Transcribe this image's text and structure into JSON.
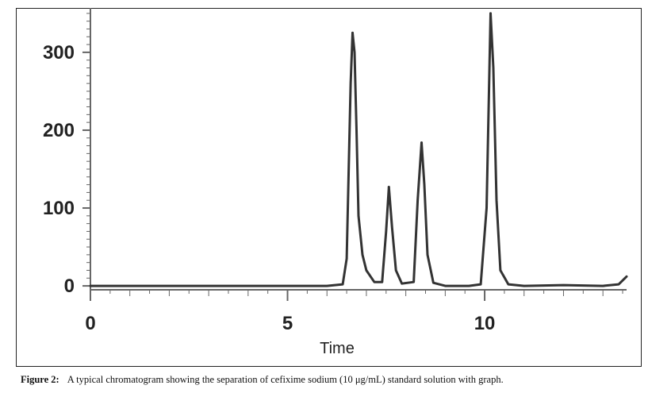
{
  "chart_data": {
    "type": "line",
    "title": "",
    "xlabel": "Time",
    "ylabel": "",
    "xlim": [
      0,
      13.6
    ],
    "ylim": [
      -5,
      357
    ],
    "x_ticks": [
      0,
      5,
      10
    ],
    "x_tick_labels": [
      "0",
      "5",
      "10"
    ],
    "y_ticks": [
      0,
      100,
      200,
      300
    ],
    "y_tick_labels": [
      "0",
      "100",
      "200",
      "300"
    ],
    "grid": false,
    "legend": "none",
    "line_color": "#333333",
    "baseline": 0,
    "peaks": [
      {
        "retention_time": 6.65,
        "height": 325
      },
      {
        "retention_time": 7.57,
        "height": 127
      },
      {
        "retention_time": 8.4,
        "height": 184
      },
      {
        "retention_time": 10.15,
        "height": 350
      }
    ],
    "series": [
      {
        "x": [
          0,
          6.0,
          6.4,
          6.5,
          6.6,
          6.65,
          6.7,
          6.75,
          6.8,
          6.9,
          7.0,
          7.2,
          7.4,
          7.5,
          7.57,
          7.65,
          7.75,
          7.9,
          8.2,
          8.3,
          8.4,
          8.47,
          8.55,
          8.7,
          9.0,
          9.6,
          9.9,
          10.05,
          10.15,
          10.22,
          10.3,
          10.4,
          10.6,
          11.0,
          12.0,
          13.0,
          13.4,
          13.6
        ],
        "y": [
          0,
          0,
          2,
          35,
          260,
          325,
          300,
          200,
          90,
          40,
          20,
          5,
          5,
          70,
          127,
          75,
          20,
          3,
          5,
          110,
          184,
          130,
          40,
          4,
          0,
          0,
          2,
          100,
          350,
          280,
          110,
          20,
          2,
          0,
          1,
          0,
          2,
          12
        ]
      }
    ]
  },
  "caption": {
    "label": "Figure 2:",
    "text": "A typical chromatogram showing the separation of cefixime sodium (10 μg/mL) standard solution with graph."
  }
}
